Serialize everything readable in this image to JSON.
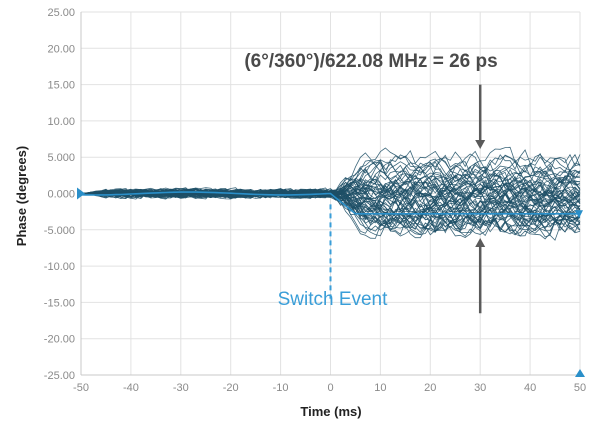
{
  "chart_data": {
    "type": "line",
    "xlabel": "Time (ms)",
    "ylabel": "Phase (degrees)",
    "xlim": [
      -50,
      50
    ],
    "ylim": [
      -25,
      25
    ],
    "x_ticks": [
      "-50",
      "-40",
      "-30",
      "-20",
      "-10",
      "0",
      "10",
      "20",
      "30",
      "40",
      "50"
    ],
    "y_ticks": [
      "25.00",
      "20.00",
      "15.00",
      "10.00",
      "5.000",
      "0.000",
      "-5.000",
      "-10.00",
      "-15.00",
      "-20.00",
      "-25.00"
    ],
    "y_tick_values": [
      25,
      20,
      15,
      10,
      5,
      0,
      -5,
      -10,
      -15,
      -20,
      -25
    ],
    "x_tick_values": [
      -50,
      -40,
      -30,
      -20,
      -10,
      0,
      10,
      20,
      30,
      40,
      50
    ],
    "grid": true,
    "series_description_values": {
      "trace_count": 60,
      "pre_switch_band": [
        -1.0,
        1.0
      ],
      "post_switch_band": [
        -6.0,
        6.0
      ],
      "switch_time": 0
    },
    "annotations": {
      "formula": "(6°/360°)/622.08 MHz = 26 ps",
      "switch_label": "Switch Event",
      "arrow_top_x": 30,
      "arrow_top_target_y": 6,
      "arrow_bottom_x": 30,
      "arrow_bottom_target_y": -6
    },
    "colors": {
      "traces": "#1d4f66",
      "avg": "#2a8fc9",
      "switch": "#3a9ed8",
      "arrow": "#5a5a5a",
      "grid": "#e2e2e2"
    }
  }
}
